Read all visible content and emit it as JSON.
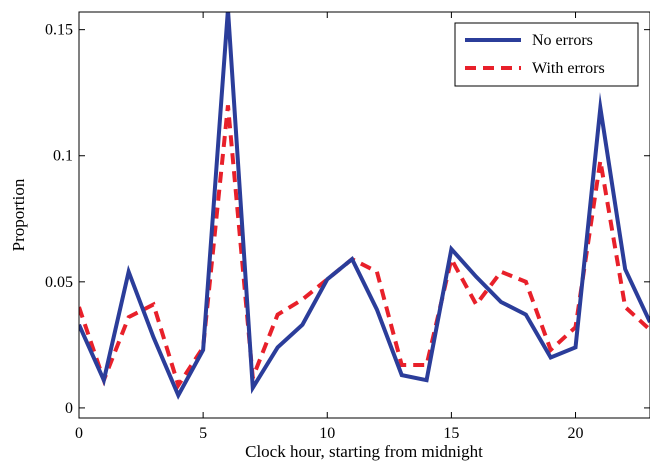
{
  "chart_data": {
    "type": "line",
    "title": "",
    "xlabel": "Clock hour, starting from midnight",
    "ylabel": "Proportion",
    "xlim": [
      0,
      23
    ],
    "ylim": [
      -0.004,
      0.157
    ],
    "xticks": [
      0,
      5,
      10,
      15,
      20
    ],
    "xtick_labels": [
      "0",
      "5",
      "10",
      "15",
      "20"
    ],
    "yticks": [
      0,
      0.05,
      0.1,
      0.15
    ],
    "ytick_labels": [
      "0",
      "0.05",
      "0.1",
      "0.15"
    ],
    "grid": false,
    "legend_position": "top-right",
    "x": [
      0,
      1,
      2,
      3,
      4,
      5,
      6,
      7,
      8,
      9,
      10,
      11,
      12,
      13,
      14,
      15,
      16,
      17,
      18,
      19,
      20,
      21,
      22,
      23
    ],
    "series": [
      {
        "name": "No errors",
        "color": "#2b3d9a",
        "style": "solid",
        "values": [
          0.033,
          0.011,
          0.054,
          0.028,
          0.005,
          0.023,
          0.158,
          0.008,
          0.024,
          0.033,
          0.051,
          0.059,
          0.039,
          0.013,
          0.011,
          0.063,
          0.052,
          0.042,
          0.037,
          0.02,
          0.024,
          0.119,
          0.055,
          0.034
        ]
      },
      {
        "name": "With errors",
        "color": "#e8202a",
        "style": "dashed",
        "values": [
          0.04,
          0.011,
          0.036,
          0.041,
          0.009,
          0.024,
          0.12,
          0.012,
          0.037,
          0.043,
          0.051,
          0.059,
          0.054,
          0.017,
          0.017,
          0.059,
          0.041,
          0.054,
          0.05,
          0.023,
          0.032,
          0.098,
          0.04,
          0.031
        ]
      }
    ]
  }
}
